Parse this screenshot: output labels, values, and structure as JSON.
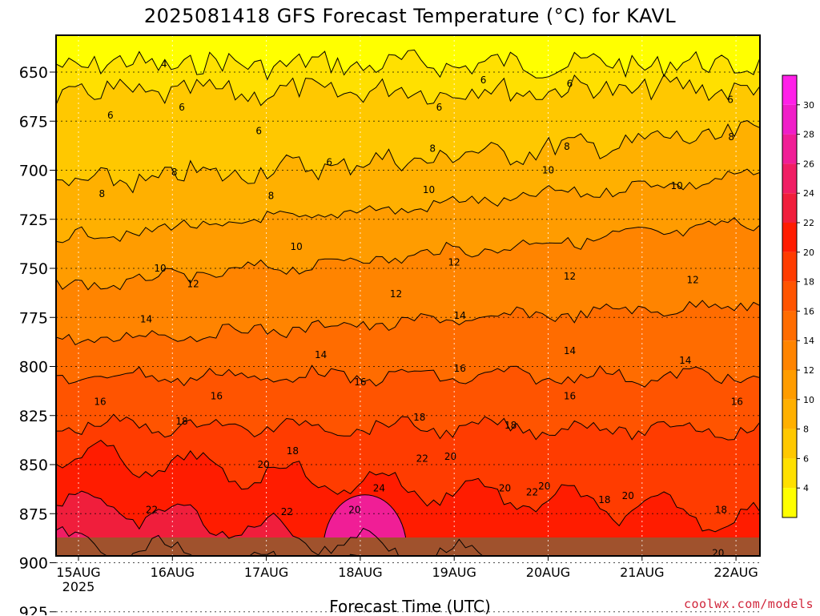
{
  "chart_data": {
    "type": "heatmap",
    "title": "2025081418 GFS Forecast Temperature (°C) for KAVL",
    "xlabel": "Forecast Time (UTC)",
    "ylabel": "",
    "credit": "coolwx.com/models",
    "y_axis": {
      "scale": "inverted pressure",
      "ylim": [
        925,
        625
      ],
      "ticks": [
        650,
        675,
        700,
        725,
        750,
        775,
        800,
        825,
        850,
        875,
        900,
        925
      ],
      "tick_labels": [
        "650",
        "675",
        "700",
        "725",
        "750",
        "775",
        "800",
        "825",
        "850",
        "875",
        "900",
        "925"
      ]
    },
    "x_axis": {
      "ticks": [
        "15AUG 2025",
        "16AUG",
        "17AUG",
        "18AUG",
        "19AUG",
        "20AUG",
        "21AUG",
        "22AUG"
      ],
      "tick_labels": [
        "15AUG",
        "16AUG",
        "17AUG",
        "18AUG",
        "19AUG",
        "20AUG",
        "21AUG",
        "22AUG"
      ],
      "year_label": "2025"
    },
    "grid": true,
    "colorbar": {
      "position": "right",
      "ticks": [
        4,
        6,
        8,
        10,
        12,
        14,
        16,
        18,
        20,
        22,
        24,
        26,
        28,
        30
      ],
      "colors": [
        "#ffff00",
        "#ffe000",
        "#ffc800",
        "#ffb000",
        "#ff9c00",
        "#ff8400",
        "#ff6c00",
        "#ff5400",
        "#ff3c00",
        "#ff1c00",
        "#f01e3c",
        "#f01e64",
        "#f01e96",
        "#f01ec8",
        "#ff20e8"
      ]
    },
    "isotherms": [
      {
        "level": 4,
        "p_start": 646,
        "p_end": 646
      },
      {
        "level": 6,
        "p_start": 661,
        "p_end": 658
      },
      {
        "level": 8,
        "p_start": 708,
        "p_end": 681
      },
      {
        "level": 10,
        "p_start": 735,
        "p_end": 703
      },
      {
        "level": 12,
        "p_start": 760,
        "p_end": 727
      },
      {
        "level": 14,
        "p_start": 787,
        "p_end": 768
      },
      {
        "level": 16,
        "p_start": 805,
        "p_end": 805
      },
      {
        "level": 18,
        "p_start": 830,
        "p_end": 832
      },
      {
        "level": 20,
        "p_start": 845,
        "p_end": 878
      },
      {
        "level": 22,
        "p_start": 868,
        "p_end": 920
      },
      {
        "level": 24,
        "p_start": 890,
        "p_end": 925
      }
    ],
    "contour_labels": [
      {
        "text": "4",
        "time": 0.91,
        "p": 646
      },
      {
        "text": "6",
        "time": 0.34,
        "p": 672
      },
      {
        "text": "6",
        "time": 1.1,
        "p": 668
      },
      {
        "text": "6",
        "time": 1.92,
        "p": 680
      },
      {
        "text": "6",
        "time": 2.67,
        "p": 696
      },
      {
        "text": "6",
        "time": 3.84,
        "p": 668
      },
      {
        "text": "6",
        "time": 4.31,
        "p": 654
      },
      {
        "text": "6",
        "time": 5.23,
        "p": 656
      },
      {
        "text": "6",
        "time": 6.94,
        "p": 664
      },
      {
        "text": "8",
        "time": 0.25,
        "p": 712
      },
      {
        "text": "8",
        "time": 1.02,
        "p": 701
      },
      {
        "text": "8",
        "time": 2.05,
        "p": 713
      },
      {
        "text": "8",
        "time": 3.77,
        "p": 689
      },
      {
        "text": "8",
        "time": 5.2,
        "p": 688
      },
      {
        "text": "8",
        "time": 6.95,
        "p": 683
      },
      {
        "text": "10",
        "time": 0.87,
        "p": 750
      },
      {
        "text": "10",
        "time": 2.32,
        "p": 739
      },
      {
        "text": "10",
        "time": 3.73,
        "p": 710
      },
      {
        "text": "10",
        "time": 5.0,
        "p": 700
      },
      {
        "text": "10",
        "time": 6.37,
        "p": 708
      },
      {
        "text": "12",
        "time": 1.22,
        "p": 758
      },
      {
        "text": "12",
        "time": 3.38,
        "p": 763
      },
      {
        "text": "12",
        "time": 4.0,
        "p": 747
      },
      {
        "text": "12",
        "time": 5.23,
        "p": 754
      },
      {
        "text": "12",
        "time": 6.54,
        "p": 756
      },
      {
        "text": "14",
        "time": 0.72,
        "p": 776
      },
      {
        "text": "14",
        "time": 2.58,
        "p": 794
      },
      {
        "text": "14",
        "time": 4.06,
        "p": 774
      },
      {
        "text": "14",
        "time": 5.23,
        "p": 792
      },
      {
        "text": "14",
        "time": 6.46,
        "p": 797
      },
      {
        "text": "16",
        "time": 0.23,
        "p": 818
      },
      {
        "text": "16",
        "time": 1.47,
        "p": 815
      },
      {
        "text": "16",
        "time": 3.0,
        "p": 808
      },
      {
        "text": "16",
        "time": 4.06,
        "p": 801
      },
      {
        "text": "16",
        "time": 5.23,
        "p": 815
      },
      {
        "text": "16",
        "time": 7.01,
        "p": 818
      },
      {
        "text": "18",
        "time": 1.1,
        "p": 828
      },
      {
        "text": "18",
        "time": 2.28,
        "p": 843
      },
      {
        "text": "18",
        "time": 3.63,
        "p": 826
      },
      {
        "text": "18",
        "time": 4.6,
        "p": 830
      },
      {
        "text": "18",
        "time": 5.6,
        "p": 868
      },
      {
        "text": "18",
        "time": 6.84,
        "p": 873
      },
      {
        "text": "20",
        "time": 1.97,
        "p": 850
      },
      {
        "text": "20",
        "time": 2.94,
        "p": 873
      },
      {
        "text": "20",
        "time": 3.96,
        "p": 846
      },
      {
        "text": "20",
        "time": 4.54,
        "p": 862
      },
      {
        "text": "20",
        "time": 4.96,
        "p": 861
      },
      {
        "text": "20",
        "time": 5.85,
        "p": 866
      },
      {
        "text": "20",
        "time": 6.81,
        "p": 895
      },
      {
        "text": "22",
        "time": 0.78,
        "p": 873
      },
      {
        "text": "22",
        "time": 2.22,
        "p": 874
      },
      {
        "text": "22",
        "time": 3.66,
        "p": 847
      },
      {
        "text": "22",
        "time": 4.83,
        "p": 864
      },
      {
        "text": "22",
        "time": 5.68,
        "p": 910
      },
      {
        "text": "24",
        "time": 3.2,
        "p": 862
      }
    ]
  }
}
